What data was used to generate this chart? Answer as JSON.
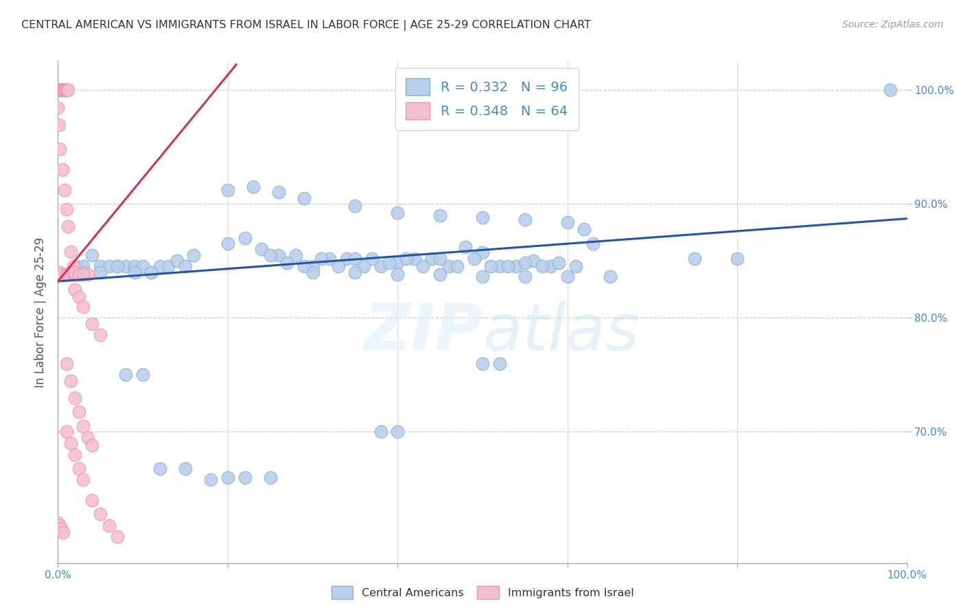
{
  "title": "CENTRAL AMERICAN VS IMMIGRANTS FROM ISRAEL IN LABOR FORCE | AGE 25-29 CORRELATION CHART",
  "source": "Source: ZipAtlas.com",
  "ylabel": "In Labor Force | Age 25-29",
  "xlim": [
    0.0,
    1.0
  ],
  "ylim": [
    0.585,
    1.025
  ],
  "x_ticks": [
    0.0,
    0.2,
    0.4,
    0.6,
    0.8,
    1.0
  ],
  "x_tick_labels": [
    "0.0%",
    "",
    "",
    "",
    "",
    "100.0%"
  ],
  "y_tick_labels_right": [
    "100.0%",
    "90.0%",
    "80.0%",
    "70.0%"
  ],
  "y_tick_values_right": [
    1.0,
    0.9,
    0.8,
    0.7
  ],
  "legend_label1": "R = 0.332   N = 96",
  "legend_label2": "R = 0.348   N = 64",
  "legend_color1": "#b8d0ea",
  "legend_color2": "#f5c0ce",
  "scatter_color1": "#b8d0ea",
  "scatter_color2": "#f5c0ce",
  "line_color1": "#2255aa",
  "line_color2": "#cc3355",
  "watermark": "ZIPatlas",
  "bottom_label1": "Central Americans",
  "bottom_label2": "Immigrants from Israel",
  "blue_line_x": [
    0.0,
    1.0
  ],
  "blue_line_y": [
    0.832,
    0.887
  ],
  "pink_line_x": [
    0.0,
    0.21
  ],
  "pink_line_y": [
    0.832,
    1.022
  ],
  "background_color": "#ffffff",
  "grid_color": "#cccccc",
  "title_color": "#333333",
  "axis_label_color": "#555555",
  "tick_color": "#4488cc",
  "blue_scatter_x": [
    0.02,
    0.03,
    0.04,
    0.05,
    0.06,
    0.07,
    0.08,
    0.09,
    0.1,
    0.11,
    0.12,
    0.13,
    0.14,
    0.15,
    0.16,
    0.03,
    0.05,
    0.07,
    0.09,
    0.11,
    0.2,
    0.22,
    0.24,
    0.26,
    0.28,
    0.3,
    0.32,
    0.34,
    0.36,
    0.38,
    0.4,
    0.42,
    0.44,
    0.46,
    0.48,
    0.5,
    0.52,
    0.54,
    0.56,
    0.58,
    0.25,
    0.27,
    0.29,
    0.31,
    0.33,
    0.35,
    0.37,
    0.39,
    0.41,
    0.43,
    0.45,
    0.47,
    0.49,
    0.51,
    0.53,
    0.55,
    0.57,
    0.59,
    0.61,
    0.63,
    0.2,
    0.23,
    0.26,
    0.29,
    0.35,
    0.4,
    0.45,
    0.5,
    0.55,
    0.6,
    0.38,
    0.4,
    0.5,
    0.52,
    0.62,
    0.75,
    0.8,
    0.98,
    0.08,
    0.1,
    0.12,
    0.15,
    0.18,
    0.2,
    0.22,
    0.25,
    0.3,
    0.35,
    0.4,
    0.45,
    0.5,
    0.55,
    0.6,
    0.65
  ],
  "blue_scatter_y": [
    0.845,
    0.845,
    0.855,
    0.845,
    0.845,
    0.845,
    0.845,
    0.845,
    0.845,
    0.84,
    0.845,
    0.845,
    0.85,
    0.845,
    0.855,
    0.84,
    0.84,
    0.845,
    0.84,
    0.84,
    0.865,
    0.87,
    0.86,
    0.855,
    0.855,
    0.845,
    0.852,
    0.852,
    0.845,
    0.845,
    0.848,
    0.852,
    0.852,
    0.845,
    0.862,
    0.857,
    0.845,
    0.845,
    0.85,
    0.845,
    0.855,
    0.848,
    0.845,
    0.852,
    0.845,
    0.852,
    0.852,
    0.848,
    0.852,
    0.845,
    0.852,
    0.845,
    0.852,
    0.845,
    0.845,
    0.848,
    0.845,
    0.848,
    0.845,
    0.865,
    0.912,
    0.915,
    0.91,
    0.905,
    0.898,
    0.892,
    0.89,
    0.888,
    0.886,
    0.884,
    0.7,
    0.7,
    0.76,
    0.76,
    0.878,
    0.852,
    0.852,
    1.0,
    0.75,
    0.75,
    0.668,
    0.668,
    0.658,
    0.66,
    0.66,
    0.66,
    0.84,
    0.84,
    0.838,
    0.838,
    0.836,
    0.836,
    0.836,
    0.836
  ],
  "pink_scatter_x": [
    0.0,
    0.001,
    0.002,
    0.003,
    0.004,
    0.005,
    0.006,
    0.007,
    0.008,
    0.009,
    0.01,
    0.011,
    0.012,
    0.0,
    0.001,
    0.002,
    0.0,
    0.001,
    0.002,
    0.003,
    0.01,
    0.012,
    0.015,
    0.018,
    0.02,
    0.022,
    0.025,
    0.028,
    0.03,
    0.035,
    0.005,
    0.008,
    0.01,
    0.012,
    0.015,
    0.018,
    0.02,
    0.025,
    0.03,
    0.01,
    0.015,
    0.02,
    0.025,
    0.03,
    0.035,
    0.04,
    0.02,
    0.025,
    0.03,
    0.04,
    0.05,
    0.01,
    0.015,
    0.02,
    0.025,
    0.03,
    0.04,
    0.05,
    0.06,
    0.07,
    0.0,
    0.002,
    0.004,
    0.006
  ],
  "pink_scatter_y": [
    1.0,
    1.0,
    1.0,
    1.0,
    1.0,
    1.0,
    1.0,
    1.0,
    1.0,
    1.0,
    1.0,
    1.0,
    1.0,
    0.984,
    0.969,
    0.948,
    0.838,
    0.838,
    0.84,
    0.838,
    0.838,
    0.838,
    0.838,
    0.838,
    0.838,
    0.838,
    0.838,
    0.838,
    0.838,
    0.838,
    0.93,
    0.912,
    0.895,
    0.88,
    0.858,
    0.845,
    0.84,
    0.838,
    0.838,
    0.76,
    0.745,
    0.73,
    0.718,
    0.705,
    0.695,
    0.688,
    0.825,
    0.818,
    0.81,
    0.795,
    0.785,
    0.7,
    0.69,
    0.68,
    0.668,
    0.658,
    0.64,
    0.628,
    0.618,
    0.608,
    0.62,
    0.618,
    0.615,
    0.612
  ]
}
